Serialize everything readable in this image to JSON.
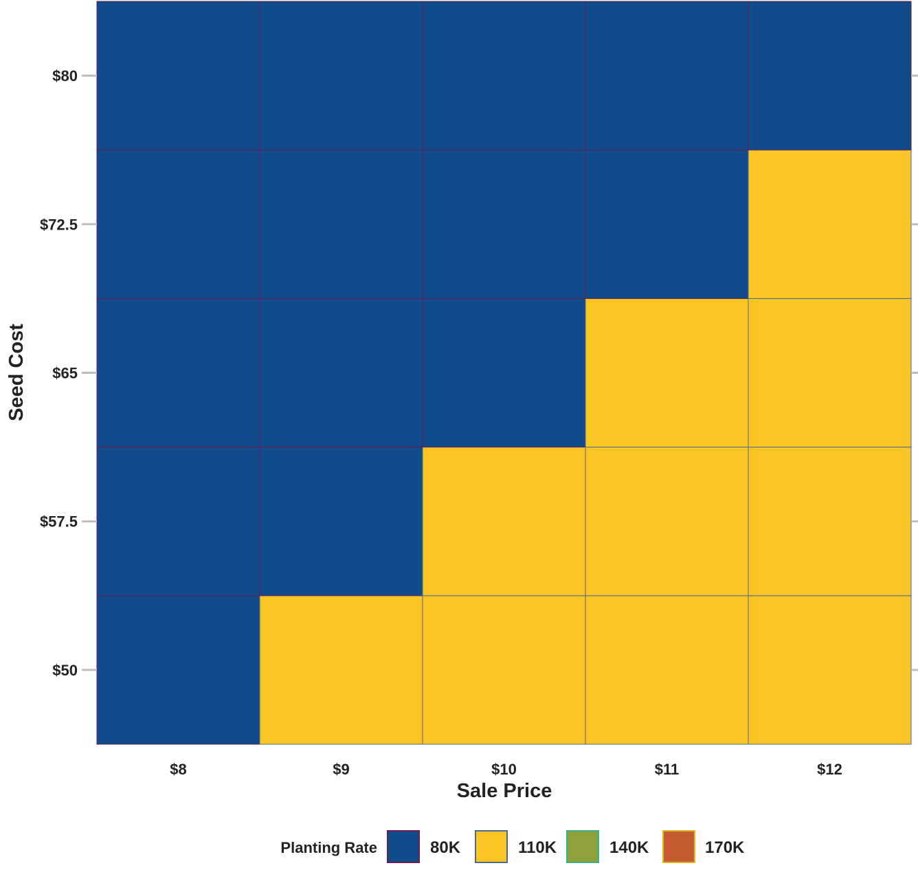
{
  "chart_data": {
    "type": "heatmap",
    "x": {
      "label": "Sale Price",
      "categories": [
        "$8",
        "$9",
        "$10",
        "$11",
        "$12"
      ]
    },
    "y": {
      "label": "Seed Cost",
      "categories": [
        "$50",
        "$57.5",
        "$65",
        "$72.5",
        "$80"
      ]
    },
    "legend": {
      "title": "Planting Rate",
      "placement": "bottom",
      "entries": [
        {
          "label": "80K",
          "color": "#104c8b",
          "border": "#6b1b4f"
        },
        {
          "label": "110K",
          "color": "#fcc526",
          "border": "#4a6b8c"
        },
        {
          "label": "140K",
          "color": "#8fa13b",
          "border": "#3cae8c"
        },
        {
          "label": "170K",
          "color": "#c65d31",
          "border": "#e1b426"
        }
      ]
    },
    "cells": [
      [
        "80K",
        "110K",
        "110K",
        "110K",
        "110K"
      ],
      [
        "80K",
        "80K",
        "110K",
        "110K",
        "110K"
      ],
      [
        "80K",
        "80K",
        "80K",
        "110K",
        "110K"
      ],
      [
        "80K",
        "80K",
        "80K",
        "80K",
        "110K"
      ],
      [
        "80K",
        "80K",
        "80K",
        "80K",
        "80K"
      ]
    ],
    "grid": false
  }
}
